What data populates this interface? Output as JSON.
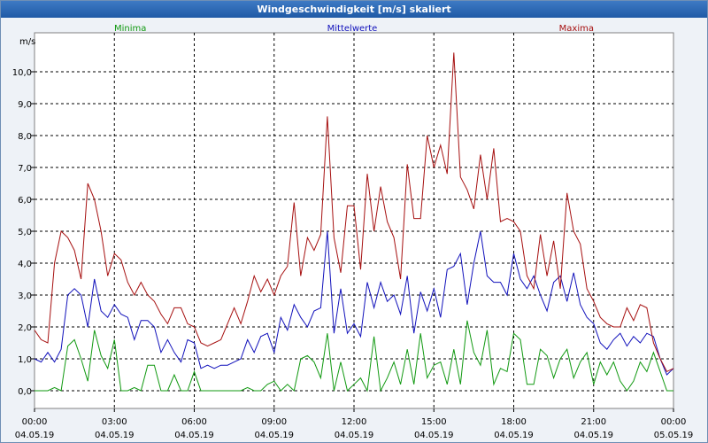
{
  "window": {
    "title": "Windgeschwindigkeit [m/s] skaliert"
  },
  "colors": {
    "min": "#119911",
    "mean": "#1111bb",
    "max": "#a61010"
  },
  "chart_data": {
    "type": "line",
    "title": "Windgeschwindigkeit [m/s] skaliert",
    "ylabel": "m/s",
    "ylim": [
      0,
      11.2
    ],
    "yticks": [
      "0,0",
      "1,0",
      "2,0",
      "3,0",
      "4,0",
      "5,0",
      "6,0",
      "7,0",
      "8,0",
      "9,0",
      "10,0"
    ],
    "grid": true,
    "xlim_hours": [
      0,
      24
    ],
    "x_hours": [
      0,
      0.25,
      0.5,
      0.75,
      1,
      1.25,
      1.5,
      1.75,
      2,
      2.25,
      2.5,
      2.75,
      3,
      3.25,
      3.5,
      3.75,
      4,
      4.25,
      4.5,
      4.75,
      5,
      5.25,
      5.5,
      5.75,
      6,
      6.25,
      6.5,
      6.75,
      7,
      7.25,
      7.5,
      7.75,
      8,
      8.25,
      8.5,
      8.75,
      9,
      9.25,
      9.5,
      9.75,
      10,
      10.25,
      10.5,
      10.75,
      11,
      11.25,
      11.5,
      11.75,
      12,
      12.25,
      12.5,
      12.75,
      13,
      13.25,
      13.5,
      13.75,
      14,
      14.25,
      14.5,
      14.75,
      15,
      15.25,
      15.5,
      15.75,
      16,
      16.25,
      16.5,
      16.75,
      17,
      17.25,
      17.5,
      17.75,
      18,
      18.25,
      18.5,
      18.75,
      19,
      19.25,
      19.5,
      19.75,
      20,
      20.25,
      20.5,
      20.75,
      21,
      21.25,
      21.5,
      21.75,
      22,
      22.25,
      22.5,
      22.75,
      23,
      23.25,
      23.5,
      23.75,
      24
    ],
    "xticks": [
      {
        "time": "00:00",
        "date": "04.05.19"
      },
      {
        "time": "03:00",
        "date": "04.05.19"
      },
      {
        "time": "06:00",
        "date": "04.05.19"
      },
      {
        "time": "09:00",
        "date": "04.05.19"
      },
      {
        "time": "12:00",
        "date": "04.05.19"
      },
      {
        "time": "15:00",
        "date": "04.05.19"
      },
      {
        "time": "18:00",
        "date": "04.05.19"
      },
      {
        "time": "21:00",
        "date": "04.05.19"
      },
      {
        "time": "00:00",
        "date": "05.05.19"
      }
    ],
    "series": [
      {
        "name": "Minima",
        "key": "min",
        "legend_position": "top-left",
        "values": [
          0.0,
          0.0,
          0.0,
          0.1,
          0.0,
          1.4,
          1.6,
          1.0,
          0.3,
          1.9,
          1.1,
          0.7,
          1.6,
          0.0,
          0.0,
          0.1,
          0.0,
          0.8,
          0.8,
          0.0,
          0.0,
          0.5,
          0.0,
          0.0,
          0.6,
          0.0,
          0.0,
          0.0,
          0.0,
          0.0,
          0.0,
          0.0,
          0.1,
          0.0,
          0.0,
          0.2,
          0.3,
          0.0,
          0.2,
          0.0,
          1.0,
          1.1,
          0.9,
          0.4,
          1.8,
          0.0,
          0.9,
          0.0,
          0.2,
          0.4,
          0.0,
          1.7,
          0.0,
          0.4,
          0.9,
          0.2,
          1.3,
          0.2,
          1.8,
          0.4,
          0.8,
          0.9,
          0.2,
          1.3,
          0.2,
          2.2,
          1.2,
          0.8,
          1.9,
          0.2,
          0.7,
          0.6,
          1.8,
          1.6,
          0.2,
          0.2,
          1.3,
          1.1,
          0.4,
          1.0,
          1.3,
          0.4,
          0.9,
          1.2,
          0.2,
          0.9,
          0.5,
          0.9,
          0.3,
          0.0,
          0.3,
          0.9,
          0.6,
          1.2,
          0.6,
          0.0,
          0.0
        ]
      },
      {
        "name": "Mittelwerte",
        "key": "mean",
        "legend_position": "top-center",
        "values": [
          1.0,
          0.9,
          1.2,
          0.9,
          1.3,
          3.0,
          3.2,
          3.0,
          2.0,
          3.5,
          2.5,
          2.3,
          2.7,
          2.4,
          2.3,
          1.6,
          2.2,
          2.2,
          2.0,
          1.2,
          1.6,
          1.2,
          0.9,
          1.6,
          1.5,
          0.7,
          0.8,
          0.7,
          0.8,
          0.8,
          0.9,
          1.0,
          1.6,
          1.2,
          1.7,
          1.8,
          1.2,
          2.3,
          1.9,
          2.7,
          2.3,
          2.0,
          2.5,
          2.6,
          5.0,
          1.8,
          3.2,
          1.8,
          2.1,
          1.7,
          3.4,
          2.6,
          3.4,
          2.8,
          3.0,
          2.4,
          3.6,
          1.8,
          3.1,
          2.5,
          3.2,
          2.3,
          3.8,
          3.9,
          4.3,
          2.7,
          4.0,
          5.0,
          3.6,
          3.4,
          3.4,
          3.0,
          4.3,
          3.5,
          3.2,
          3.6,
          3.0,
          2.5,
          3.4,
          3.6,
          2.8,
          3.7,
          2.7,
          2.3,
          2.1,
          1.5,
          1.3,
          1.6,
          1.8,
          1.4,
          1.7,
          1.5,
          1.8,
          1.7,
          1.0,
          0.5,
          0.7
        ]
      },
      {
        "name": "Maxima",
        "key": "max",
        "legend_position": "top-right",
        "values": [
          1.9,
          1.6,
          1.5,
          4.0,
          5.0,
          4.8,
          4.4,
          3.5,
          6.5,
          6.0,
          5.0,
          3.6,
          4.3,
          4.1,
          3.4,
          3.0,
          3.4,
          3.0,
          2.8,
          2.4,
          2.1,
          2.6,
          2.6,
          2.1,
          2.0,
          1.5,
          1.4,
          1.5,
          1.6,
          2.1,
          2.6,
          2.1,
          2.8,
          3.6,
          3.1,
          3.5,
          3.0,
          3.6,
          3.9,
          5.9,
          3.6,
          4.8,
          4.4,
          4.9,
          8.6,
          4.8,
          3.7,
          5.8,
          5.8,
          3.8,
          6.8,
          5.0,
          6.4,
          5.3,
          4.8,
          3.5,
          7.1,
          5.4,
          5.4,
          8.0,
          7.0,
          7.7,
          6.8,
          10.6,
          6.7,
          6.3,
          5.7,
          7.4,
          6.0,
          7.6,
          5.3,
          5.4,
          5.3,
          5.0,
          3.6,
          3.2,
          4.9,
          3.6,
          4.7,
          3.2,
          6.2,
          5.0,
          4.6,
          3.2,
          2.8,
          2.3,
          2.1,
          2.0,
          2.0,
          2.6,
          2.2,
          2.7,
          2.6,
          1.5,
          1.0,
          0.6,
          0.7
        ]
      }
    ]
  }
}
